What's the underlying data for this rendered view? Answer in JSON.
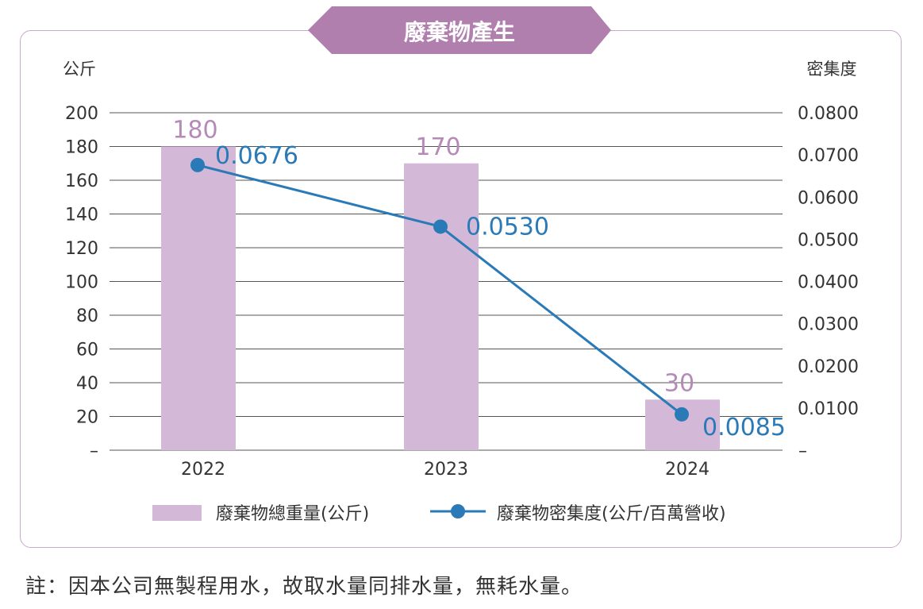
{
  "chart_data": {
    "type": "bar+line",
    "title": "廢棄物產生",
    "left_axis_label": "公斤",
    "right_axis_label": "密集度",
    "categories": [
      "2022",
      "2023",
      "2024"
    ],
    "left_ticks": [
      "–",
      "20",
      "40",
      "60",
      "80",
      "100",
      "120",
      "140",
      "160",
      "180",
      "200"
    ],
    "right_ticks": [
      "–",
      "0.0100",
      "0.0200",
      "0.0300",
      "0.0400",
      "0.0500",
      "0.0600",
      "0.0700",
      "0.0800"
    ],
    "ylim_left": [
      0,
      200
    ],
    "ylim_right": [
      0,
      0.08
    ],
    "grid": true,
    "series": [
      {
        "name": "廢棄物總重量(公斤)",
        "type": "bar",
        "axis": "left",
        "values": [
          180,
          170,
          30
        ],
        "labels": [
          "180",
          "170",
          "30"
        ],
        "color": "#d4b8d7",
        "label_color": "#b58ab8"
      },
      {
        "name": "廢棄物密集度(公斤/百萬營收)",
        "type": "line",
        "axis": "right",
        "values": [
          0.0676,
          0.053,
          0.0085
        ],
        "labels": [
          "0.0676",
          "0.0530",
          "0.0085"
        ],
        "color": "#2a7ab8"
      }
    ],
    "legend": "bottom-center"
  },
  "colors": {
    "title_banner": "#b07fae",
    "card_border": "#c9a8cc",
    "grid": "#555555"
  },
  "footnote": "註：因本公司無製程用水，故取水量同排水量，無耗水量。"
}
